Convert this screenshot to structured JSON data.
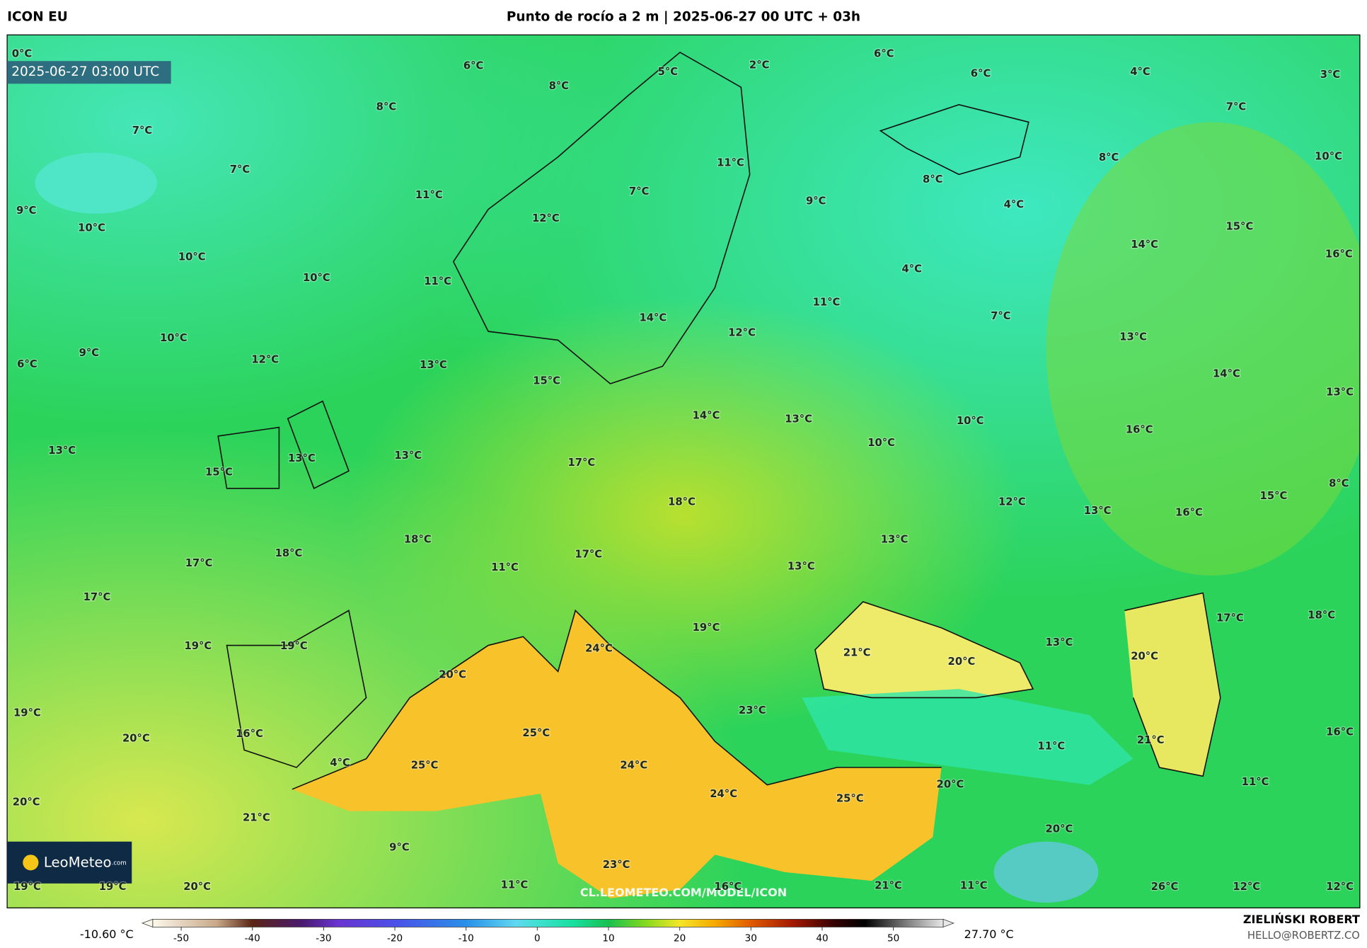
{
  "header": {
    "model": "ICON EU",
    "title": "Punto de rocío a 2 m | 2025-06-27 00 UTC + 03h"
  },
  "map": {
    "timestamp": "2025-06-27 03:00 UTC",
    "logo": "LeoMeteo",
    "logo_suffix": ".com",
    "url": "CL.LEOMETEO.COM/MODEL/ICON",
    "labels": [
      "0°C",
      "6°C",
      "8°C",
      "5°C",
      "2°C",
      "6°C",
      "6°C",
      "4°C",
      "3°C",
      "7°C",
      "8°C",
      "7°C",
      "7°C",
      "11°C",
      "8°C",
      "8°C",
      "10°C",
      "11°C",
      "7°C",
      "9°C",
      "4°C",
      "9°C",
      "10°C",
      "12°C",
      "15°C",
      "14°C",
      "16°C",
      "10°C",
      "10°C",
      "11°C",
      "4°C",
      "11°C",
      "7°C",
      "14°C",
      "12°C",
      "10°C",
      "9°C",
      "13°C",
      "6°C",
      "12°C",
      "13°C",
      "15°C",
      "14°C",
      "13°C",
      "14°C",
      "13°C",
      "10°C",
      "16°C",
      "10°C",
      "13°C",
      "13°C",
      "13°C",
      "15°C",
      "17°C",
      "8°C",
      "18°C",
      "12°C",
      "13°C",
      "16°C",
      "15°C",
      "18°C",
      "18°C",
      "17°C",
      "13°C",
      "17°C",
      "11°C",
      "13°C",
      "17°C",
      "18°C",
      "17°C",
      "19°C",
      "24°C",
      "19°C",
      "19°C",
      "21°C",
      "20°C",
      "13°C",
      "20°C",
      "20°C",
      "23°C",
      "19°C",
      "25°C",
      "16°C",
      "20°C",
      "21°C",
      "11°C",
      "16°C",
      "4°C",
      "25°C",
      "24°C",
      "11°C",
      "20°C",
      "20°C",
      "24°C",
      "25°C",
      "21°C",
      "20°C",
      "9°C",
      "23°C",
      "19°C",
      "19°C",
      "20°C",
      "11°C",
      "16°C",
      "21°C",
      "11°C",
      "26°C",
      "12°C",
      "12°C"
    ]
  },
  "colorbar": {
    "min_label": "-10.60 °C",
    "max_label": "27.70 °C",
    "lim": [
      -54,
      57
    ],
    "ticks": [
      -50,
      -40,
      -30,
      -20,
      -10,
      0,
      10,
      20,
      30,
      40,
      50
    ]
  },
  "footer": {
    "author": "ZIELIŃSKI ROBERT",
    "email": "HELLO@ROBERTZ.CO"
  }
}
